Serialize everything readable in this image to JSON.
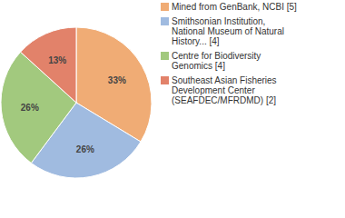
{
  "chart_data": {
    "type": "pie",
    "categories": [
      "Mined from GenBank, NCBI [5]",
      "Smithsonian Institution, National Museum of Natural History... [4]",
      "Centre for Biodiversity Genomics [4]",
      "Southeast Asian Fisheries Development Center (SEAFDEC/MFRDMD) [2]"
    ],
    "values": [
      33,
      26,
      26,
      13
    ],
    "value_labels": [
      "33%",
      "26%",
      "26%",
      "13%"
    ],
    "colors": [
      "#f0ac75",
      "#a0bbe0",
      "#a2c97e",
      "#e2826a"
    ],
    "data_labels": true,
    "legend": "top-right"
  }
}
